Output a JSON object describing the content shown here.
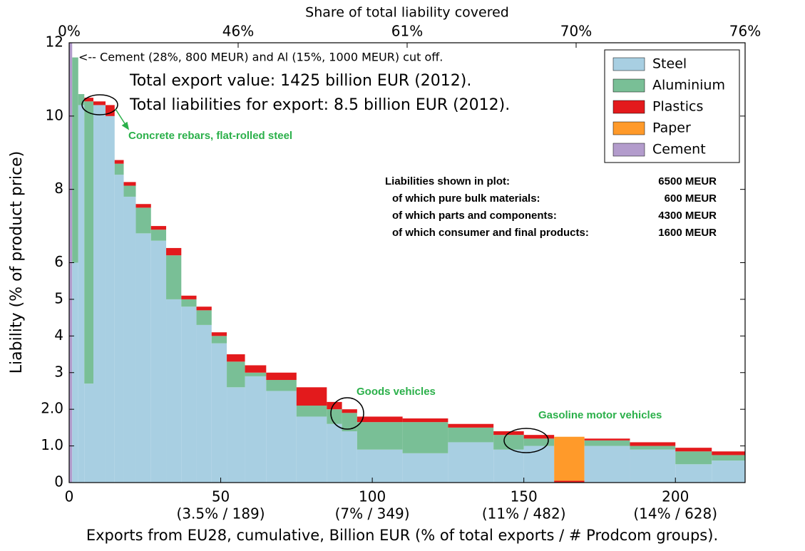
{
  "chart_data": {
    "type": "histogram",
    "title": "Share of total liability covered",
    "xlabel": "Exports from EU28, cumulative, Billion EUR (% of total exports / # Prodcom groups).",
    "ylabel": "Liability (% of product price)",
    "bins": [
      0,
      1,
      3,
      5,
      8,
      12,
      15,
      18,
      22,
      27,
      32,
      37,
      42,
      47,
      52,
      58,
      65,
      75,
      85,
      90,
      95,
      110,
      125,
      140,
      150,
      160,
      170,
      185,
      200,
      212,
      223
    ],
    "series": [
      {
        "name": "Steel",
        "color": "#a8cfe2",
        "values": [
          0,
          6,
          10.3,
          2.7,
          10.3,
          10.0,
          8.4,
          7.8,
          6.8,
          6.6,
          5.0,
          4.8,
          4.3,
          3.8,
          2.6,
          2.9,
          2.5,
          1.8,
          1.6,
          1.4,
          0.9,
          0.8,
          1.1,
          0.9,
          1.0,
          0,
          1.0,
          0.9,
          0.5,
          0.6
        ]
      },
      {
        "name": "Aluminium",
        "color": "#79bf96",
        "values": [
          0,
          5.6,
          0.3,
          7.7,
          0,
          0,
          0.3,
          0.3,
          0.7,
          0.3,
          1.2,
          0.2,
          0.4,
          0.2,
          0.7,
          0.1,
          0.3,
          0.3,
          0.4,
          0.5,
          0.75,
          0.85,
          0.4,
          0.4,
          0.2,
          0,
          0.15,
          0.1,
          0.35,
          0.15
        ]
      },
      {
        "name": "Plastics",
        "color": "#e31a1c",
        "values": [
          0,
          0,
          0,
          0.1,
          0.1,
          0.3,
          0.1,
          0.1,
          0.1,
          0.1,
          0.2,
          0.1,
          0.1,
          0.1,
          0.2,
          0.2,
          0.2,
          0.5,
          0.2,
          0.1,
          0.15,
          0.1,
          0.1,
          0.1,
          0.1,
          0.05,
          0.05,
          0.1,
          0.1,
          0.1
        ]
      },
      {
        "name": "Paper",
        "color": "#ff9a2a",
        "values": [
          0,
          0,
          0,
          0,
          0,
          0,
          0,
          0,
          0,
          0,
          0,
          0,
          0,
          0,
          0,
          0,
          0,
          0,
          0,
          0,
          0,
          0,
          0,
          0,
          0,
          1.2,
          0,
          0,
          0,
          0
        ]
      },
      {
        "name": "Cement",
        "color": "#b39ccc",
        "values": [
          12,
          0,
          0,
          0,
          0,
          0,
          0,
          0,
          0,
          0,
          0,
          0,
          0,
          0,
          0,
          0,
          0,
          0,
          0,
          0,
          0,
          0,
          0,
          0,
          0,
          0,
          0,
          0,
          0,
          0
        ]
      }
    ],
    "xlim": [
      0,
      223
    ],
    "ylim": [
      0,
      12
    ],
    "xticks": [
      0,
      50,
      100,
      150,
      200
    ],
    "xtick_sublabels": [
      null,
      "(3.5% / 189)",
      "(7% / 349)",
      "(11% / 482)",
      "(14% / 628)"
    ],
    "x2ticks": [
      {
        "value": 0,
        "label": "0%"
      },
      {
        "value": 55.75,
        "label": "46%"
      },
      {
        "value": 111.5,
        "label": "61%"
      },
      {
        "value": 167.25,
        "label": "70%"
      },
      {
        "value": 223,
        "label": "76%"
      }
    ],
    "yticks": [
      0,
      {
        "value": 1,
        "label": "1.0"
      },
      {
        "value": 2,
        "label": "2.0"
      },
      3,
      4,
      5,
      6,
      8,
      10,
      12
    ],
    "grid": false,
    "legend": "upper right",
    "annotations": {
      "cutoff": "<-- Cement (28%, 800 MEUR) and Al (15%, 1000 MEUR) cut off.",
      "export_value": "Total export value: 1425 billion EUR (2012).",
      "liabilities": "Total liabilities for export: 8.5 billion EUR (2012).",
      "rebars": "Concrete rebars, flat-rolled steel",
      "goods": "Goods vehicles",
      "gasoline": "Gasoline motor vehicles",
      "info": [
        [
          "Liabilities shown in plot:",
          "6500 MEUR"
        ],
        [
          "of which pure bulk materials:",
          "600 MEUR"
        ],
        [
          "of which parts and components:",
          "4300 MEUR"
        ],
        [
          "of which consumer and final products:",
          "1600 MEUR"
        ]
      ]
    }
  }
}
